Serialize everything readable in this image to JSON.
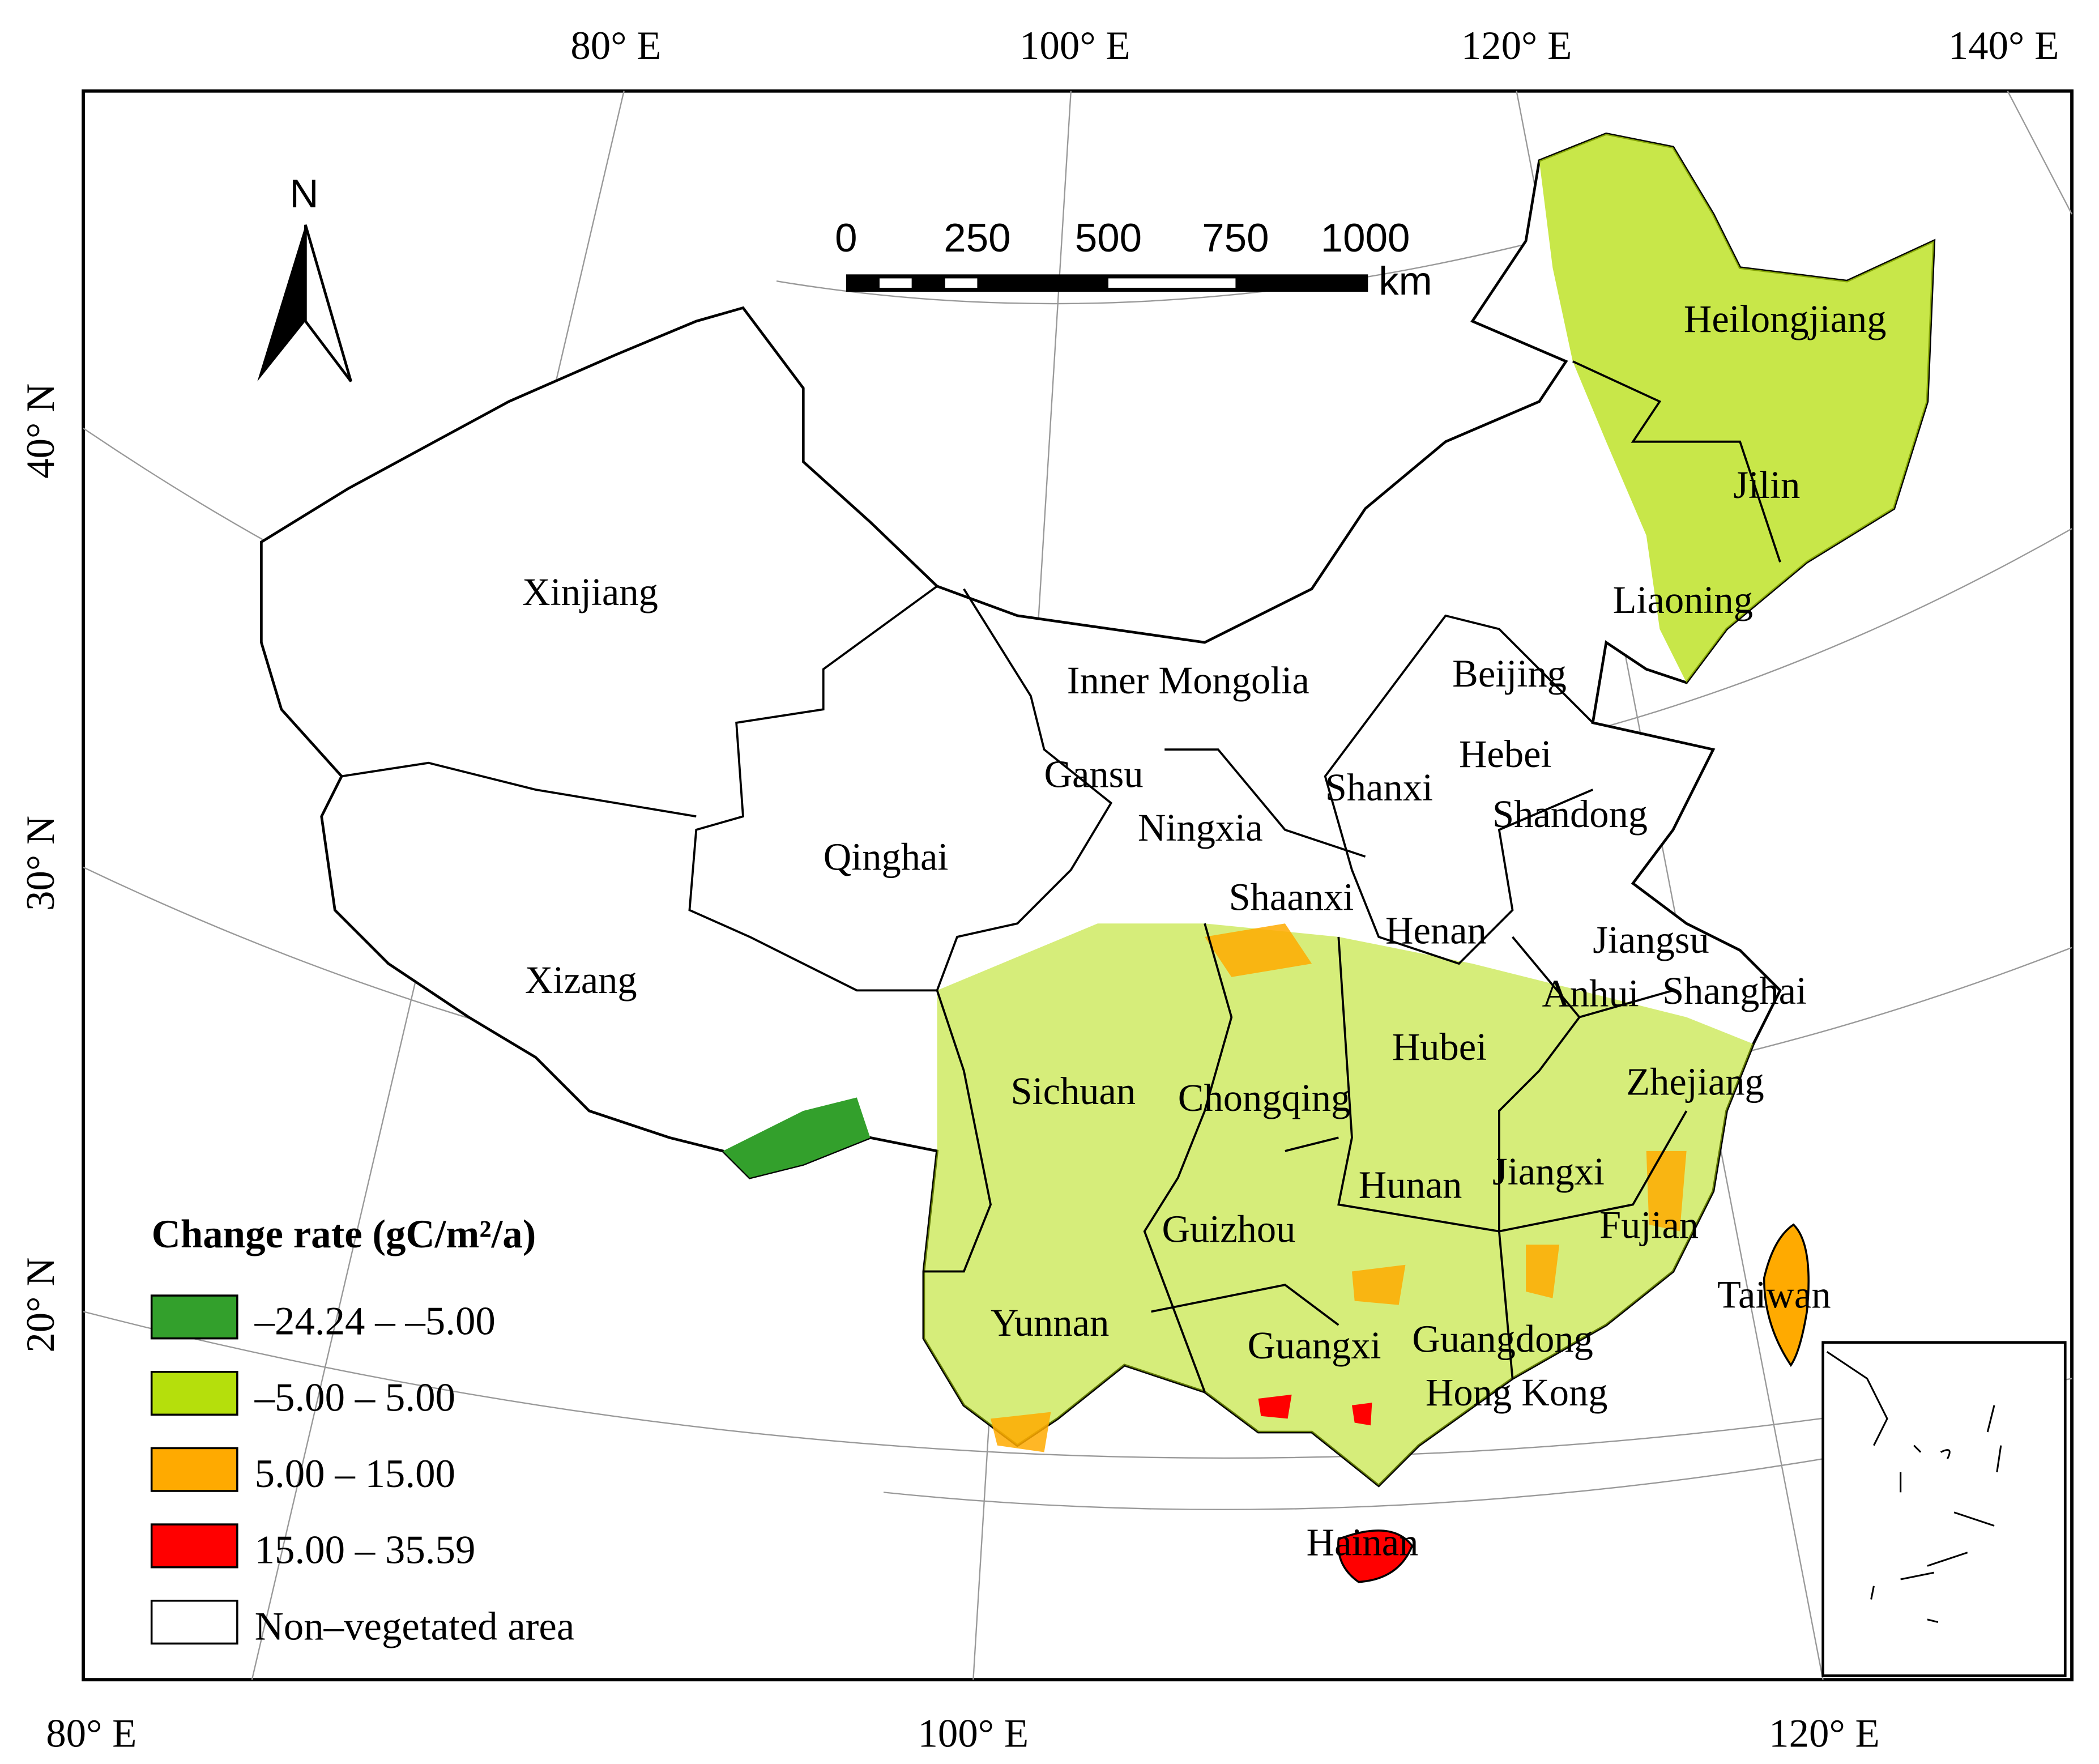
{
  "graticule": {
    "top": [
      "80° E",
      "100° E",
      "120° E",
      "140° E"
    ],
    "left": [
      "40° N",
      "30° N",
      "20° N"
    ],
    "bottom": [
      "80° E",
      "100° E",
      "120° E"
    ]
  },
  "north_arrow": "N",
  "scale_bar": {
    "labels": [
      "0",
      "250",
      "500",
      "750",
      "1000"
    ],
    "unit": "km"
  },
  "regions": [
    "Heilongjiang",
    "Jilin",
    "Liaoning",
    "Xinjiang",
    "Inner Mongolia",
    "Beijing",
    "Hebei",
    "Gansu",
    "Shanxi",
    "Shandong",
    "Ningxia",
    "Qinghai",
    "Shaanxi",
    "Henan",
    "Jiangsu",
    "Xizang",
    "Anhui",
    "Shanghai",
    "Hubei",
    "Sichuan",
    "Chongqing",
    "Zhejiang",
    "Jiangxi",
    "Hunan",
    "Fujian",
    "Guizhou",
    "Taiwan",
    "Yunnan",
    "Guangxi",
    "Guangdong",
    "Hong Kong",
    "Hainan"
  ],
  "legend": {
    "title": "Change rate (gC/m²/a)",
    "items": [
      {
        "label": "–24.24 – –5.00",
        "color": "#33a02c"
      },
      {
        "label": "–5.00 – 5.00",
        "color": "#b5df0c"
      },
      {
        "label": "5.00 – 15.00",
        "color": "#ffaa00"
      },
      {
        "label": "15.00 – 35.59",
        "color": "#ff0000"
      },
      {
        "label": "Non–vegetated area",
        "color": "#ffffff"
      }
    ]
  }
}
